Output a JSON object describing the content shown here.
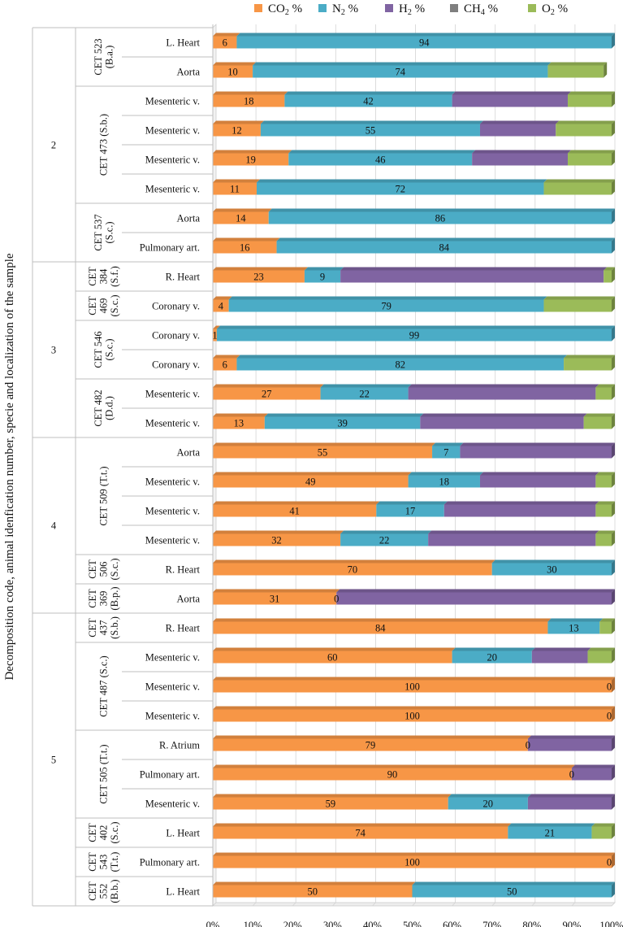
{
  "chart_data": {
    "type": "bar",
    "orientation": "horizontal",
    "stacked": true,
    "percent": true,
    "ylabel": "Decomposition code, animal idenfication number, specie and localization of the sample",
    "xticks": [
      "0%",
      "10%",
      "20%",
      "30%",
      "40%",
      "50%",
      "60%",
      "70%",
      "80%",
      "90%",
      "100%"
    ],
    "series": [
      {
        "name": "CO2",
        "sub": "2",
        "label": "CO₂ %",
        "color": "#F79646"
      },
      {
        "name": "N2",
        "sub": "2",
        "label": "N₂ %",
        "color": "#4BACC6"
      },
      {
        "name": "H2",
        "sub": "2",
        "label": "H₂ %",
        "color": "#8064A2"
      },
      {
        "name": "CH4",
        "sub": "4",
        "label": "CH₄ %",
        "color": "#7F7F7F"
      },
      {
        "name": "O2",
        "sub": "2",
        "label": "O₂ %",
        "color": "#9BBB59"
      }
    ],
    "rows": [
      {
        "site": "L. Heart",
        "values": [
          6,
          94,
          0,
          0,
          0
        ],
        "labels": [
          "6",
          "94"
        ]
      },
      {
        "site": "Aorta",
        "values": [
          10,
          74,
          0,
          0,
          14
        ],
        "labels": [
          "10",
          "74"
        ]
      },
      {
        "site": "Mesenteric v.",
        "values": [
          18,
          42,
          29,
          0,
          11
        ],
        "labels": [
          "18",
          "42"
        ]
      },
      {
        "site": "Mesenteric v.",
        "values": [
          12,
          55,
          19,
          0,
          14
        ],
        "labels": [
          "12",
          "55"
        ]
      },
      {
        "site": "Mesenteric v.",
        "values": [
          19,
          46,
          24,
          0,
          11
        ],
        "labels": [
          "19",
          "46"
        ]
      },
      {
        "site": "Mesenteric v.",
        "values": [
          11,
          72,
          0,
          0,
          17
        ],
        "labels": [
          "11",
          "72"
        ]
      },
      {
        "site": "Aorta",
        "values": [
          14,
          86,
          0,
          0,
          0
        ],
        "labels": [
          "14",
          "86"
        ]
      },
      {
        "site": "Pulmonary art.",
        "values": [
          16,
          84,
          0,
          0,
          0
        ],
        "labels": [
          "16",
          "84"
        ]
      },
      {
        "site": "R. Heart",
        "values": [
          23,
          9,
          66,
          0,
          2
        ],
        "labels": [
          "23",
          "9"
        ]
      },
      {
        "site": "Coronary v.",
        "values": [
          4,
          79,
          0,
          0,
          17
        ],
        "labels": [
          "4",
          "79"
        ]
      },
      {
        "site": "Coronary v.",
        "values": [
          1,
          99,
          0,
          0,
          0
        ],
        "labels": [
          "1",
          "99"
        ]
      },
      {
        "site": "Coronary v.",
        "values": [
          6,
          82,
          0,
          0,
          12
        ],
        "labels": [
          "6",
          "82"
        ]
      },
      {
        "site": "Mesenteric v.",
        "values": [
          27,
          22,
          47,
          0,
          4
        ],
        "labels": [
          "27",
          "22"
        ]
      },
      {
        "site": "Mesenteric v.",
        "values": [
          13,
          39,
          41,
          0,
          7
        ],
        "labels": [
          "13",
          "39"
        ]
      },
      {
        "site": "Aorta",
        "values": [
          55,
          7,
          38,
          0,
          0
        ],
        "labels": [
          "55",
          "7"
        ]
      },
      {
        "site": "Mesenteric v.",
        "values": [
          49,
          18,
          29,
          0,
          4
        ],
        "labels": [
          "49",
          "18"
        ]
      },
      {
        "site": "Mesenteric v.",
        "values": [
          41,
          17,
          38,
          0,
          4
        ],
        "labels": [
          "41",
          "17"
        ]
      },
      {
        "site": "Mesenteric v.",
        "values": [
          32,
          22,
          42,
          0,
          4
        ],
        "labels": [
          "32",
          "22"
        ]
      },
      {
        "site": "R. Heart",
        "values": [
          70,
          30,
          0,
          0,
          0
        ],
        "labels": [
          "70",
          "30"
        ]
      },
      {
        "site": "Aorta",
        "values": [
          31,
          0,
          69,
          0,
          0
        ],
        "labels": [
          "31",
          "0"
        ]
      },
      {
        "site": "R. Heart",
        "values": [
          84,
          13,
          0,
          0,
          3
        ],
        "labels": [
          "84",
          "13"
        ]
      },
      {
        "site": "Mesenteric v.",
        "values": [
          60,
          20,
          14,
          0,
          6
        ],
        "labels": [
          "60",
          "20"
        ]
      },
      {
        "site": "Mesenteric v.",
        "values": [
          100,
          0,
          0,
          0,
          0
        ],
        "labels": [
          "100",
          "0"
        ]
      },
      {
        "site": "Mesenteric v.",
        "values": [
          100,
          0,
          0,
          0,
          0
        ],
        "labels": [
          "100",
          "0"
        ]
      },
      {
        "site": "R. Atrium",
        "values": [
          79,
          0,
          21,
          0,
          0
        ],
        "labels": [
          "79",
          "0"
        ]
      },
      {
        "site": "Pulmonary art.",
        "values": [
          90,
          0,
          10,
          0,
          0
        ],
        "labels": [
          "90",
          "0"
        ]
      },
      {
        "site": "Mesenteric v.",
        "values": [
          59,
          20,
          21,
          0,
          0
        ],
        "labels": [
          "59",
          "20"
        ]
      },
      {
        "site": "L. Heart",
        "values": [
          74,
          21,
          0,
          0,
          5
        ],
        "labels": [
          "74",
          "21"
        ]
      },
      {
        "site": "Pulmonary art.",
        "values": [
          100,
          0,
          0,
          0,
          0
        ],
        "labels": [
          "100",
          "0"
        ]
      },
      {
        "site": "L. Heart",
        "values": [
          50,
          50,
          0,
          0,
          0
        ],
        "labels": [
          "50",
          "50"
        ]
      }
    ],
    "animal_groups": [
      {
        "lines": [
          "CET 523",
          "(B.a.)"
        ],
        "start": 0,
        "count": 2
      },
      {
        "lines": [
          "CET 473 (S.b.)"
        ],
        "start": 2,
        "count": 4
      },
      {
        "lines": [
          "CET 537",
          "(S.c.)"
        ],
        "start": 6,
        "count": 2
      },
      {
        "lines": [
          "CET",
          "384",
          "(S.f.)"
        ],
        "start": 8,
        "count": 1
      },
      {
        "lines": [
          "CET",
          "469",
          "(S.c.)"
        ],
        "start": 9,
        "count": 1
      },
      {
        "lines": [
          "CET 546",
          "(S.c.)"
        ],
        "start": 10,
        "count": 2
      },
      {
        "lines": [
          "CET 482",
          "(D.d.)"
        ],
        "start": 12,
        "count": 2
      },
      {
        "lines": [
          "CET 509 (T.t.)"
        ],
        "start": 14,
        "count": 4
      },
      {
        "lines": [
          "CET",
          "506",
          "(S.c.)"
        ],
        "start": 18,
        "count": 1
      },
      {
        "lines": [
          "CET",
          "369",
          "(B.p.)"
        ],
        "start": 19,
        "count": 1
      },
      {
        "lines": [
          "CET",
          "437",
          "(S.b.)"
        ],
        "start": 20,
        "count": 1
      },
      {
        "lines": [
          "CET 487 (S.c.)"
        ],
        "start": 21,
        "count": 3
      },
      {
        "lines": [
          "CET 505 (T.t.)"
        ],
        "start": 24,
        "count": 3
      },
      {
        "lines": [
          "CET",
          "402",
          "(S.c.)"
        ],
        "start": 27,
        "count": 1
      },
      {
        "lines": [
          "CET",
          "543",
          "(T.t.)"
        ],
        "start": 28,
        "count": 1
      },
      {
        "lines": [
          "CET",
          "552",
          "(B.b.)"
        ],
        "start": 29,
        "count": 1
      }
    ],
    "code_groups": [
      {
        "label": "2",
        "start": 0,
        "count": 8
      },
      {
        "label": "3",
        "start": 8,
        "count": 6
      },
      {
        "label": "4",
        "start": 14,
        "count": 6
      },
      {
        "label": "5",
        "start": 20,
        "count": 10
      }
    ]
  }
}
